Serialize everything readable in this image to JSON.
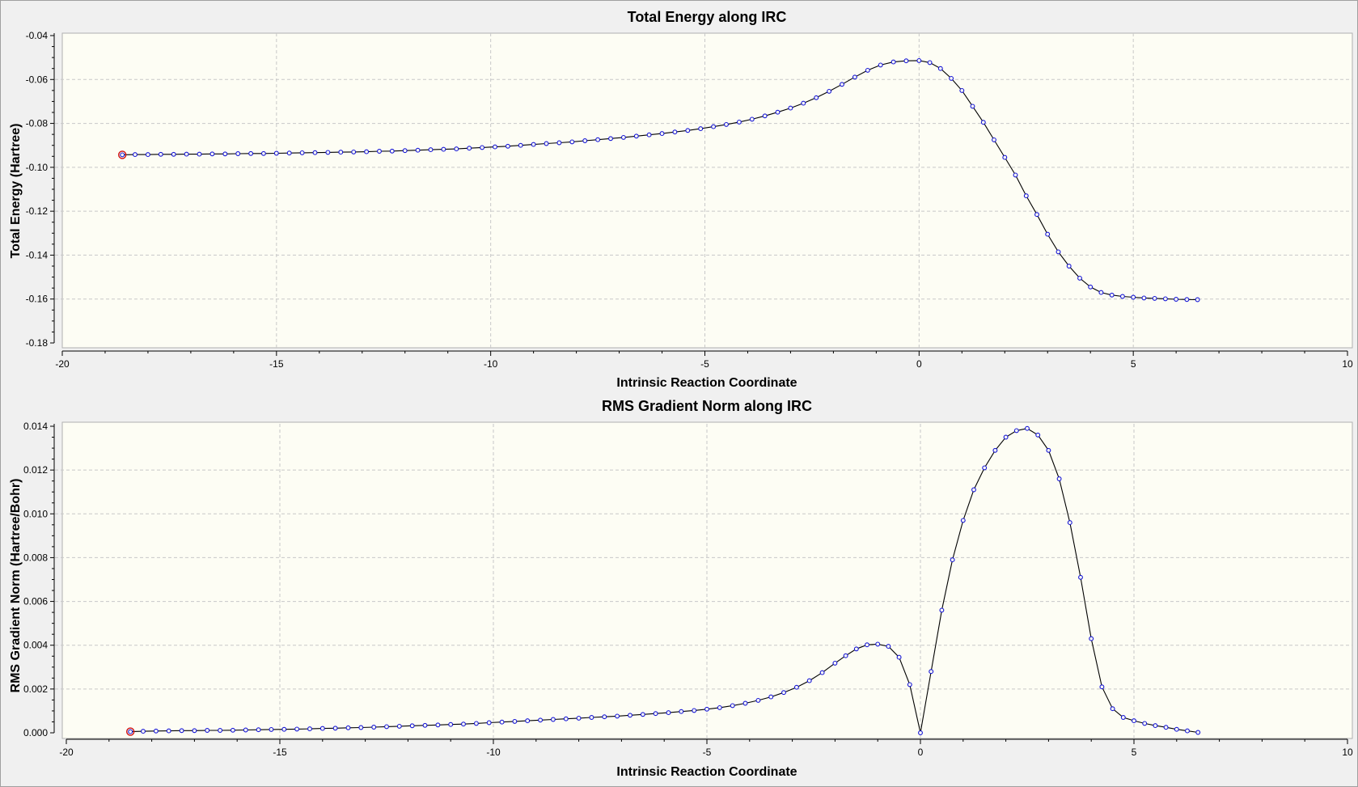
{
  "chart_data": [
    {
      "type": "line",
      "title": "Total Energy along IRC",
      "xlabel": "Intrinsic Reaction Coordinate",
      "ylabel": "Total Energy (Hartree)",
      "xlim": [
        -20,
        10
      ],
      "ylim": [
        -0.18,
        -0.04
      ],
      "xticks": [
        "-20",
        "-15",
        "-10",
        "-5",
        "0",
        "5",
        "10"
      ],
      "yticks": [
        "-0.04",
        "-0.06",
        "-0.08",
        "-0.10",
        "-0.12",
        "-0.14",
        "-0.16",
        "-0.18"
      ],
      "grid": true,
      "highlight_point": {
        "x": -18.6,
        "y": -0.0943
      },
      "series": [
        {
          "x": [
            -18.6,
            -18.3,
            -18.0,
            -17.7,
            -17.4,
            -17.1,
            -16.8,
            -16.5,
            -16.2,
            -15.9,
            -15.6,
            -15.3,
            -15.0,
            -14.7,
            -14.4,
            -14.1,
            -13.8,
            -13.5,
            -13.2,
            -12.9,
            -12.6,
            -12.3,
            -12.0,
            -11.7,
            -11.4,
            -11.1,
            -10.8,
            -10.5,
            -10.2,
            -9.9,
            -9.6,
            -9.3,
            -9.0,
            -8.7,
            -8.4,
            -8.1,
            -7.8,
            -7.5,
            -7.2,
            -6.9,
            -6.6,
            -6.3,
            -6.0,
            -5.7,
            -5.4,
            -5.1,
            -4.8,
            -4.5,
            -4.2,
            -3.9,
            -3.6,
            -3.3,
            -3.0,
            -2.7,
            -2.4,
            -2.1,
            -1.8,
            -1.5,
            -1.2,
            -0.9,
            -0.6,
            -0.3,
            0.0,
            0.25,
            0.5,
            0.75,
            1.0,
            1.25,
            1.5,
            1.75,
            2.0,
            2.25,
            2.5,
            2.75,
            3.0,
            3.25,
            3.5,
            3.75,
            4.0,
            4.25,
            4.5,
            4.75,
            5.0,
            5.25,
            5.5,
            5.75,
            6.0,
            6.25,
            6.5
          ],
          "y": [
            -0.0943,
            -0.0942,
            -0.0942,
            -0.0941,
            -0.0941,
            -0.094,
            -0.094,
            -0.0939,
            -0.0939,
            -0.0938,
            -0.0937,
            -0.0937,
            -0.0936,
            -0.0935,
            -0.0934,
            -0.0933,
            -0.0932,
            -0.0931,
            -0.093,
            -0.0929,
            -0.0927,
            -0.0926,
            -0.0924,
            -0.0922,
            -0.092,
            -0.0918,
            -0.0916,
            -0.0913,
            -0.091,
            -0.0907,
            -0.0904,
            -0.09,
            -0.0896,
            -0.0892,
            -0.0888,
            -0.0884,
            -0.0879,
            -0.0874,
            -0.0869,
            -0.0864,
            -0.0858,
            -0.0852,
            -0.0846,
            -0.0839,
            -0.0832,
            -0.0824,
            -0.0815,
            -0.0805,
            -0.0794,
            -0.0781,
            -0.0766,
            -0.0749,
            -0.073,
            -0.0708,
            -0.0683,
            -0.0654,
            -0.0622,
            -0.0589,
            -0.0558,
            -0.0534,
            -0.052,
            -0.0515,
            -0.0514,
            -0.0523,
            -0.055,
            -0.0595,
            -0.065,
            -0.0722,
            -0.0795,
            -0.0875,
            -0.0955,
            -0.1035,
            -0.113,
            -0.1215,
            -0.1305,
            -0.1385,
            -0.145,
            -0.1505,
            -0.1545,
            -0.157,
            -0.1582,
            -0.1588,
            -0.1592,
            -0.1595,
            -0.1597,
            -0.1599,
            -0.1601,
            -0.1602,
            -0.1603
          ]
        }
      ]
    },
    {
      "type": "line",
      "title": "RMS Gradient Norm along IRC",
      "xlabel": "Intrinsic Reaction Coordinate",
      "ylabel": "RMS Gradient Norm (Hartree/Bohr)",
      "xlim": [
        -20,
        10
      ],
      "ylim": [
        0,
        0.014
      ],
      "xticks": [
        "-20",
        "-15",
        "-10",
        "-5",
        "0",
        "5",
        "10"
      ],
      "yticks": [
        "0.014",
        "0.012",
        "0.010",
        "0.008",
        "0.006",
        "0.004",
        "0.002",
        "0.000"
      ],
      "grid": true,
      "highlight_point": {
        "x": -18.5,
        "y": 5e-05
      },
      "series": [
        {
          "x": [
            -18.5,
            -18.2,
            -17.9,
            -17.6,
            -17.3,
            -17.0,
            -16.7,
            -16.4,
            -16.1,
            -15.8,
            -15.5,
            -15.2,
            -14.9,
            -14.6,
            -14.3,
            -14.0,
            -13.7,
            -13.4,
            -13.1,
            -12.8,
            -12.5,
            -12.2,
            -11.9,
            -11.6,
            -11.3,
            -11.0,
            -10.7,
            -10.4,
            -10.1,
            -9.8,
            -9.5,
            -9.2,
            -8.9,
            -8.6,
            -8.3,
            -8.0,
            -7.7,
            -7.4,
            -7.1,
            -6.8,
            -6.5,
            -6.2,
            -5.9,
            -5.6,
            -5.3,
            -5.0,
            -4.7,
            -4.4,
            -4.1,
            -3.8,
            -3.5,
            -3.2,
            -2.9,
            -2.6,
            -2.3,
            -2.0,
            -1.75,
            -1.5,
            -1.25,
            -1.0,
            -0.75,
            -0.5,
            -0.25,
            0.0,
            0.25,
            0.5,
            0.75,
            1.0,
            1.25,
            1.5,
            1.75,
            2.0,
            2.25,
            2.5,
            2.75,
            3.0,
            3.25,
            3.5,
            3.75,
            4.0,
            4.25,
            4.5,
            4.75,
            5.0,
            5.25,
            5.5,
            5.75,
            6.0,
            6.25,
            6.5
          ],
          "y": [
            5e-05,
            7e-05,
            8e-05,
            9e-05,
            0.0001,
            0.0001,
            0.00011,
            0.00011,
            0.00012,
            0.00013,
            0.00014,
            0.00015,
            0.00016,
            0.00017,
            0.00018,
            0.0002,
            0.00021,
            0.00023,
            0.00024,
            0.00026,
            0.00028,
            0.0003,
            0.00032,
            0.00034,
            0.00036,
            0.00038,
            0.0004,
            0.00043,
            0.00046,
            0.00049,
            0.00052,
            0.00055,
            0.00058,
            0.00061,
            0.00064,
            0.00067,
            0.0007,
            0.00073,
            0.00076,
            0.0008,
            0.00084,
            0.00088,
            0.00092,
            0.00097,
            0.00102,
            0.00108,
            0.00115,
            0.00124,
            0.00135,
            0.00148,
            0.00164,
            0.00184,
            0.00208,
            0.00238,
            0.00275,
            0.00318,
            0.00352,
            0.00383,
            0.00402,
            0.00405,
            0.00395,
            0.00345,
            0.0022,
            0.0,
            0.0028,
            0.0056,
            0.0079,
            0.0097,
            0.0111,
            0.0121,
            0.0129,
            0.0135,
            0.0138,
            0.0139,
            0.0136,
            0.0129,
            0.0116,
            0.0096,
            0.0071,
            0.0043,
            0.0021,
            0.0011,
            0.0007,
            0.00055,
            0.00043,
            0.00033,
            0.00025,
            0.00016,
            9e-05,
            2e-05
          ]
        }
      ]
    }
  ]
}
